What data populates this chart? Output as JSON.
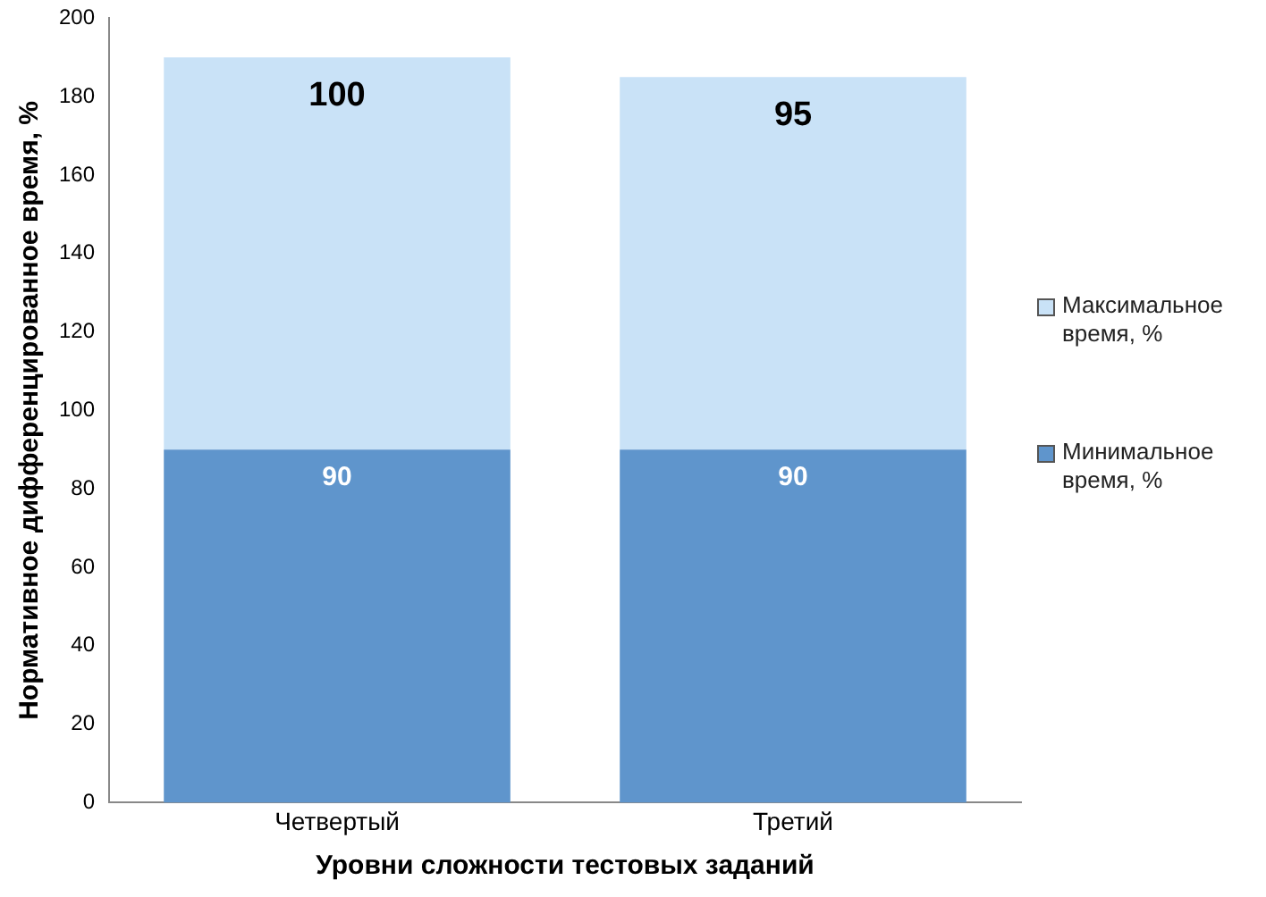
{
  "chart_data": {
    "type": "bar",
    "stacked": true,
    "xlabel": "Уровни сложности тестовых заданий",
    "ylabel": "Нормативное дифференцированное время, %",
    "categories": [
      "Четвертый",
      "Третий"
    ],
    "series": [
      {
        "name": "Минимальное время, %",
        "color": "#5f95cc",
        "values": [
          90,
          90
        ]
      },
      {
        "name": "Максимальное время, %",
        "color": "#c9e2f7",
        "values": [
          100,
          95
        ]
      }
    ],
    "ylim": [
      0,
      200
    ],
    "yticks": [
      0,
      20,
      40,
      60,
      80,
      100,
      120,
      140,
      160,
      180,
      200
    ],
    "grid": false,
    "legend": "right",
    "data_labels": true
  }
}
